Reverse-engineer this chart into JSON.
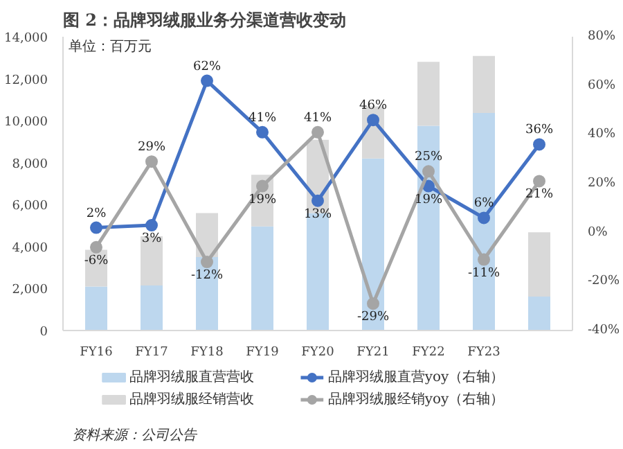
{
  "chart_data": {
    "type": "bar",
    "title": "图 2：品牌羽绒服业务分渠道营收变动",
    "stacked": true,
    "categories": [
      "FY16",
      "FY17",
      "FY18",
      "FY19",
      "FY20",
      "FY21",
      "FY22",
      "FY23",
      null
    ],
    "series": [
      {
        "name": "品牌羽绒服直营营收",
        "color": "#bdd7ee",
        "values": [
          2100,
          2150,
          3500,
          4960,
          5600,
          8200,
          9760,
          10370,
          1620
        ]
      },
      {
        "name": "品牌羽绒服经销营收",
        "color": "#d9d9d9",
        "values": [
          1750,
          2340,
          2100,
          2460,
          3490,
          2480,
          3040,
          2710,
          3060
        ]
      },
      {
        "name": "品牌羽绒服直营yoy（右轴）",
        "type": "line",
        "axis": "y2",
        "color": "#4472c4",
        "values": [
          2,
          3,
          62,
          41,
          13,
          46,
          19,
          6,
          36
        ],
        "value_labels": [
          "2%",
          "3%",
          "62%",
          "41%",
          "13%",
          "46%",
          "19%",
          "6%",
          "36%"
        ]
      },
      {
        "name": "品牌羽绒服经销yoy（右轴）",
        "type": "line",
        "axis": "y2",
        "color": "#a5a5a5",
        "values": [
          -6,
          29,
          -12,
          19,
          41,
          -29,
          25,
          -11,
          21
        ],
        "value_labels": [
          "-6%",
          "29%",
          "-12%",
          "19%",
          "41%",
          "-29%",
          "25%",
          "-11%",
          "21%"
        ]
      }
    ],
    "ylim": [
      0,
      14000
    ],
    "yticks": [
      0,
      {
        "value": 2000,
        "label": "2,000"
      },
      {
        "value": 4000,
        "label": "4,000"
      },
      {
        "value": 6000,
        "label": "6,000"
      },
      {
        "value": 8000,
        "label": "8,000"
      },
      {
        "value": 10000,
        "label": "10,000"
      },
      {
        "value": 12000,
        "label": "12,000"
      },
      {
        "value": 14000,
        "label": "14,000"
      }
    ],
    "y2lim": [
      -40,
      80
    ],
    "y2ticks": [
      {
        "value": -40,
        "label": "-40%"
      },
      {
        "value": -20,
        "label": "-20%"
      },
      {
        "value": 0,
        "label": "0%"
      },
      {
        "value": 20,
        "label": "20%"
      },
      {
        "value": 40,
        "label": "40%"
      },
      {
        "value": 60,
        "label": "60%"
      },
      {
        "value": 80,
        "label": "80%"
      }
    ],
    "marker": "circle",
    "grid": false,
    "legend": "bottom",
    "annotations": [
      "单位：百万元",
      "资料来源：公司公告"
    ]
  }
}
